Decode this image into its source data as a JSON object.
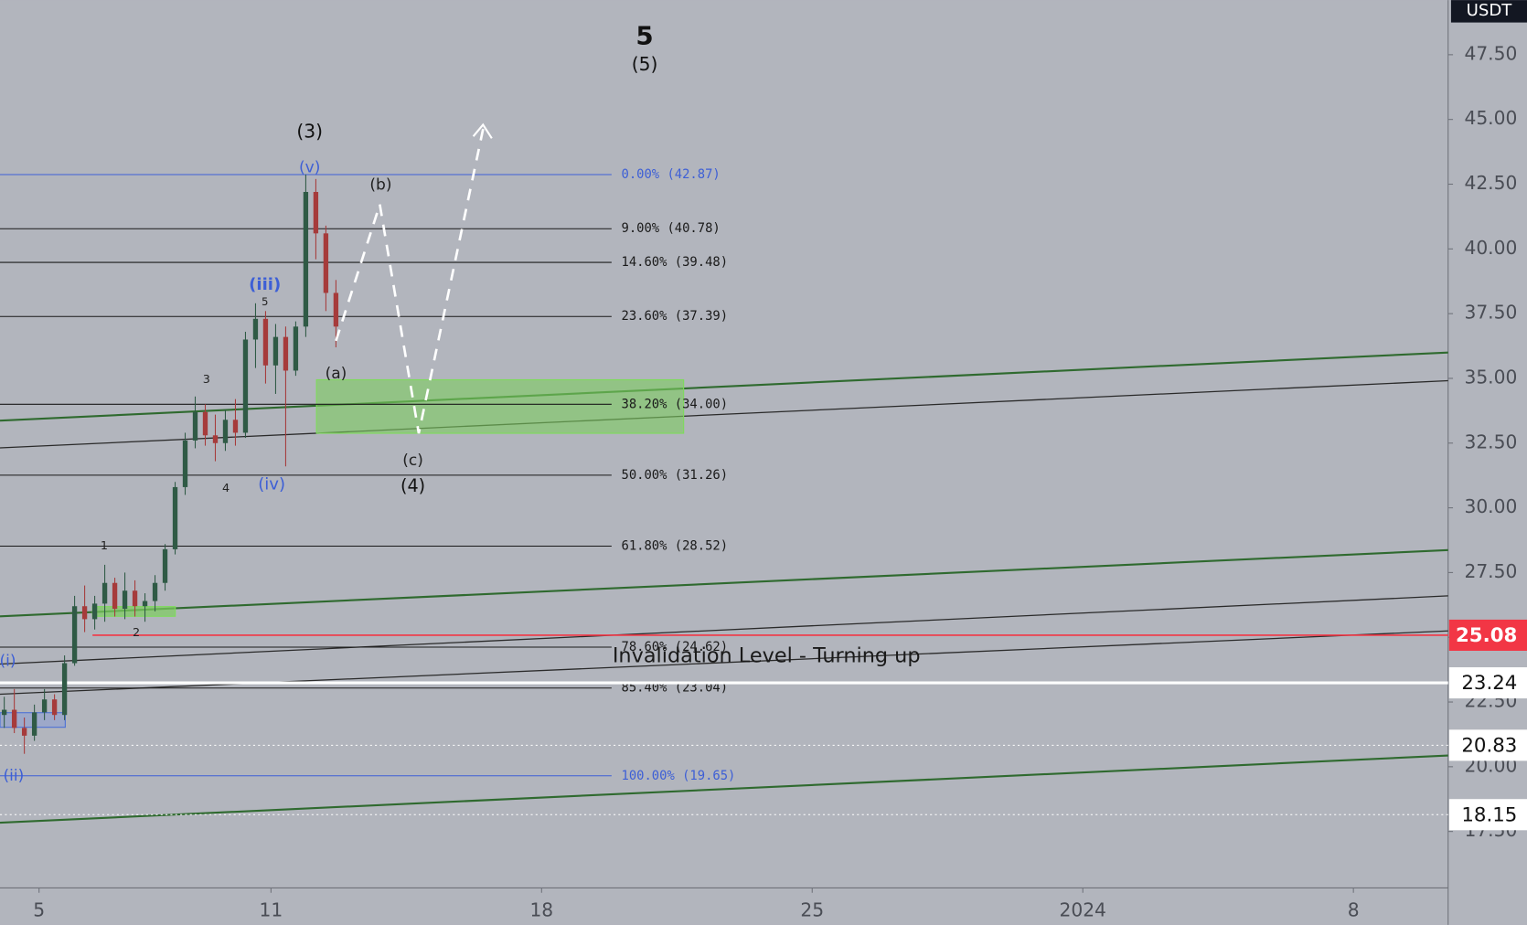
{
  "header": {
    "currency": "USDT"
  },
  "chart_data": {
    "type": "candlestick",
    "x": [
      4.1,
      4.36,
      4.62,
      4.88,
      5.14,
      5.4,
      5.66,
      5.92,
      6.18,
      6.44,
      6.7,
      6.96,
      7.22,
      7.48,
      7.74,
      8.0,
      8.26,
      8.52,
      8.78,
      9.04,
      9.3,
      9.56,
      9.82,
      10.08,
      10.34,
      10.6,
      10.86,
      11.12,
      11.38,
      11.64,
      11.9,
      12.16,
      12.42,
      12.68
    ],
    "open": [
      22,
      22.2,
      21.5,
      21.2,
      22.1,
      22.6,
      22,
      24,
      26.2,
      25.7,
      26.3,
      27.1,
      26.1,
      26.8,
      26.2,
      26.4,
      27.1,
      28.4,
      30.8,
      32.6,
      33.7,
      32.8,
      32.5,
      33.4,
      32.9,
      36.5,
      37.3,
      35.5,
      36.6,
      35.3,
      37,
      42.2,
      40.6,
      38.3
    ],
    "high": [
      22.7,
      23,
      21.9,
      22.4,
      23,
      22.8,
      24.3,
      26.6,
      27,
      26.6,
      27.8,
      27.3,
      27.5,
      27.2,
      26.7,
      27.4,
      28.6,
      31,
      32.9,
      34.3,
      34,
      33.6,
      33.8,
      34.2,
      36.8,
      37.9,
      37.6,
      37.1,
      37,
      37.2,
      42.87,
      42.7,
      40.9,
      38.8
    ],
    "low": [
      21.5,
      21.3,
      20.5,
      21,
      21.8,
      21.8,
      21.8,
      23.9,
      25.2,
      25.3,
      25.6,
      25.8,
      25.7,
      25.8,
      25.6,
      26,
      26.8,
      28.2,
      30.5,
      32.3,
      32.4,
      31.8,
      32.2,
      32.4,
      32.7,
      35.4,
      34.8,
      34.4,
      31.6,
      35.1,
      36.6,
      39.6,
      37.6,
      36.2
    ],
    "close": [
      22.2,
      21.5,
      21.2,
      22.1,
      22.6,
      22,
      24,
      26.2,
      25.7,
      26.3,
      27.1,
      26.1,
      26.8,
      26.2,
      26.4,
      27.1,
      28.4,
      30.8,
      32.6,
      33.7,
      32.8,
      32.5,
      33.4,
      32.9,
      36.5,
      37.3,
      35.5,
      36.6,
      35.3,
      37,
      42.2,
      40.6,
      38.3,
      37
    ],
    "colors": {
      "up": "#2f5a45",
      "down": "#a63b3b"
    },
    "xlim": [
      3.99,
      41.45
    ],
    "xticks": [
      5,
      11,
      18,
      25,
      {
        "value": 32,
        "label": "2024"
      },
      {
        "value": 39,
        "label": "8"
      }
    ],
    "ylim": [
      15.32,
      49.61
    ],
    "yticks": [
      {
        "value": 17.5,
        "label": "17.50"
      },
      {
        "value": 20,
        "label": "20.00"
      },
      {
        "value": 22.5,
        "label": "22.50"
      },
      {
        "value": 25,
        "label": "25.00"
      },
      {
        "value": 27.5,
        "label": "27.50"
      },
      {
        "value": 30,
        "label": "30.00"
      },
      {
        "value": 32.5,
        "label": "32.50"
      },
      {
        "value": 35,
        "label": "35.00"
      },
      {
        "value": 37.5,
        "label": "37.50"
      },
      {
        "value": 40,
        "label": "40.00"
      },
      {
        "value": 42.5,
        "label": "42.50"
      },
      {
        "value": 45,
        "label": "45.00"
      },
      {
        "value": 47.5,
        "label": "47.50"
      }
    ],
    "fib_levels": [
      {
        "label": "0.00% (42.87)",
        "value": 42.87,
        "color": "#3d5fd6"
      },
      {
        "label": "9.00% (40.78)",
        "value": 40.78,
        "color": "#1a1a1a"
      },
      {
        "label": "14.60% (39.48)",
        "value": 39.48,
        "color": "#1a1a1a"
      },
      {
        "label": "23.60% (37.39)",
        "value": 37.39,
        "color": "#1a1a1a"
      },
      {
        "label": "38.20% (34.00)",
        "value": 34.0,
        "color": "#1a1a1a"
      },
      {
        "label": "50.00% (31.26)",
        "value": 31.26,
        "color": "#1a1a1a"
      },
      {
        "label": "61.80% (28.52)",
        "value": 28.52,
        "color": "#1a1a1a"
      },
      {
        "label": "78.60% (24.62)",
        "value": 24.62,
        "color": "#1a1a1a"
      },
      {
        "label": "85.40% (23.04)",
        "value": 23.04,
        "color": "#1a1a1a"
      },
      {
        "label": "100.00% (19.65)",
        "value": 19.65,
        "color": "#3d5fd6"
      }
    ],
    "price_badges": [
      {
        "label": "25.08",
        "value": 25.08,
        "color": "#f23645"
      },
      {
        "label": "23.24",
        "value": 23.24,
        "color": "#ffffff"
      },
      {
        "label": "20.83",
        "value": 20.83,
        "color": "#ffffff"
      },
      {
        "label": "18.15",
        "value": 18.15,
        "color": "#ffffff"
      }
    ],
    "annotations": [
      "5",
      "(5)",
      "(3)",
      "(v)",
      "(b)",
      "(iii)",
      "5",
      "3",
      "(a)",
      "(c)",
      "(4)",
      "4",
      "(iv)",
      "1",
      "2",
      "(i)",
      "(ii)",
      "Invalidation Level - Turning up"
    ]
  }
}
